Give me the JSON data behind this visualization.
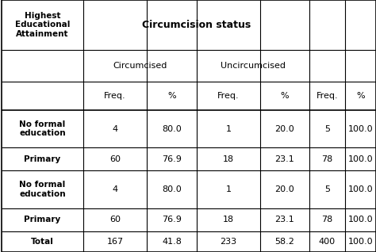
{
  "rows": [
    [
      "No formal\neducation",
      "4",
      "80.0",
      "1",
      "20.0",
      "5",
      "100.0"
    ],
    [
      "Primary",
      "60",
      "76.9",
      "18",
      "23.1",
      "78",
      "100.0"
    ],
    [
      "No formal\neducation",
      "4",
      "80.0",
      "1",
      "20.0",
      "5",
      "100.0"
    ],
    [
      "Primary",
      "60",
      "76.9",
      "18",
      "23.1",
      "78",
      "100.0"
    ],
    [
      "Total",
      "167",
      "41.8",
      "233",
      "58.2",
      "400",
      "100.0"
    ]
  ],
  "bg_color": "#ffffff",
  "line_color": "#000000",
  "text_color": "#000000",
  "fig_width": 4.74,
  "fig_height": 3.18,
  "dpi": 100
}
